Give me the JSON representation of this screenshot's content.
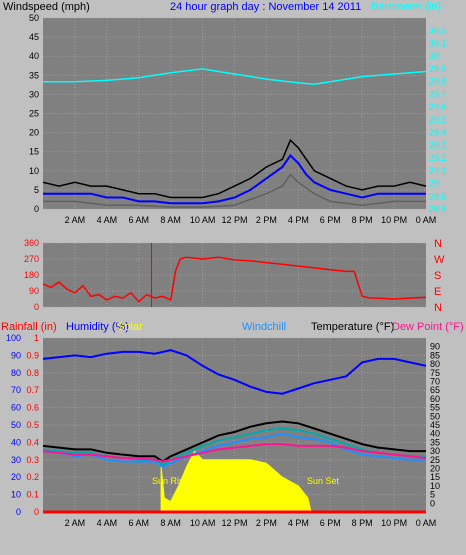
{
  "colors": {
    "page_bg": "#c0c0c0",
    "plot_bg": "#808080",
    "grid": "#a0a0a0",
    "windspeed": "#000000",
    "gust_avg": "#0000ff",
    "gust_min": "#606060",
    "barometer": "#00ffff",
    "wind_dir": "#ff0000",
    "humidity": "#0000ff",
    "rainfall": "#ff0000",
    "solar": "#ffff00",
    "windchill": "#1e90ff",
    "temperature": "#000000",
    "dew_point": "#ff1493",
    "temp2": "#00aaaa"
  },
  "chart_data": [
    {
      "type": "line",
      "title": "24 hour graph day : November 14 2011",
      "ylabel_left": "Windspeed (mph)",
      "ylabel_right": "Barometer (in)",
      "ylim_left": [
        0,
        50
      ],
      "yticks_left": [
        "0",
        "5",
        "10",
        "15",
        "20",
        "25",
        "30",
        "35",
        "40",
        "45",
        "50"
      ],
      "ylim_right": [
        28.8,
        30.3
      ],
      "yticks_right": [
        "28.8",
        "28.9",
        "29",
        "29.1",
        "29.2",
        "29.3",
        "29.4",
        "29.5",
        "29.6",
        "29.7",
        "29.8",
        "29.9",
        "30",
        "30.1",
        "30.2"
      ],
      "x_ticks": [
        "2 AM",
        "4 AM",
        "6 AM",
        "8 AM",
        "10 AM",
        "12 PM",
        "2 PM",
        "4 PM",
        "6 PM",
        "8 PM",
        "10 PM",
        "0 AM"
      ],
      "series": [
        {
          "key": "windspeed",
          "x": [
            0,
            1,
            2,
            3,
            4,
            5,
            6,
            7,
            8,
            9,
            10,
            11,
            12,
            13,
            14,
            15,
            15.5,
            16,
            16.5,
            17,
            18,
            19,
            20,
            21,
            22,
            23,
            24
          ],
          "values": [
            7,
            6,
            7,
            6,
            6,
            5,
            4,
            4,
            3,
            3,
            3,
            4,
            6,
            8,
            11,
            13,
            18,
            16,
            13,
            10,
            8,
            6,
            5,
            6,
            6,
            7,
            6
          ]
        },
        {
          "key": "gust_avg",
          "x": [
            0,
            1,
            2,
            3,
            4,
            5,
            6,
            7,
            8,
            9,
            10,
            11,
            12,
            13,
            14,
            15,
            15.5,
            16,
            16.5,
            17,
            18,
            19,
            20,
            21,
            22,
            23,
            24
          ],
          "values": [
            4,
            4,
            4,
            4,
            3,
            3,
            2,
            2,
            1.5,
            1.5,
            1.5,
            2,
            3,
            5,
            8,
            11,
            14,
            12,
            9,
            7,
            5,
            4,
            3,
            4,
            4,
            4,
            4
          ]
        },
        {
          "key": "gust_min",
          "x": [
            0,
            2,
            4,
            6,
            8,
            10,
            12,
            14,
            15,
            15.5,
            16,
            17,
            18,
            20,
            22,
            24
          ],
          "values": [
            2,
            2,
            1,
            1,
            0.5,
            0.5,
            1,
            4,
            6,
            9,
            7,
            4,
            2,
            1,
            2,
            2
          ]
        },
        {
          "key": "barometer",
          "x": [
            0,
            2,
            4,
            6,
            8,
            10,
            11,
            12,
            14,
            16,
            17,
            18,
            20,
            22,
            24
          ],
          "values": [
            29.8,
            29.8,
            29.81,
            29.83,
            29.87,
            29.9,
            29.88,
            29.86,
            29.82,
            29.79,
            29.78,
            29.8,
            29.84,
            29.86,
            29.88
          ]
        }
      ]
    },
    {
      "type": "scatter",
      "ylabel_right": [
        "N",
        "W",
        "S",
        "E",
        "N"
      ],
      "ylim": [
        0,
        360
      ],
      "yticks": [
        "0",
        "90",
        "180",
        "270",
        "360"
      ],
      "x_ticks": [],
      "series": [
        {
          "key": "wind_dir",
          "x": [
            0,
            0.5,
            1,
            1.5,
            2,
            2.5,
            3,
            3.5,
            4,
            4.5,
            5,
            5.5,
            6,
            6.5,
            7,
            7.5,
            8,
            8.3,
            8.6,
            9,
            10,
            11,
            12,
            13,
            14,
            15,
            16,
            17,
            18,
            19,
            19.5,
            20,
            20.5,
            21,
            22,
            23,
            24
          ],
          "values": [
            130,
            110,
            140,
            100,
            80,
            120,
            60,
            70,
            40,
            60,
            50,
            80,
            30,
            70,
            50,
            60,
            40,
            200,
            270,
            280,
            270,
            280,
            265,
            260,
            250,
            240,
            230,
            220,
            210,
            200,
            200,
            60,
            50,
            50,
            45,
            50,
            55
          ]
        }
      ]
    },
    {
      "type": "line",
      "ylabel_left": "Rainfall (in)",
      "ylabel_left2": "Humidity (%)",
      "label_solar": "Solar",
      "label_windchill": "Windchill",
      "ylabel_right": "Temperature (°F)",
      "ylabel_right2": "Dew Point (°F)",
      "ylim_rain": [
        0,
        1
      ],
      "yticks_rain": [
        "0",
        "0.1",
        "0.2",
        "0.3",
        "0.4",
        "0.5",
        "0.6",
        "0.7",
        "0.8",
        "0.9",
        "1"
      ],
      "yticks_humidity": [
        "0",
        "10",
        "20",
        "30",
        "40",
        "50",
        "60",
        "70",
        "80",
        "90",
        "100"
      ],
      "ylim_temp": [
        -5,
        95
      ],
      "yticks_temp": [
        "0",
        "5",
        "10",
        "15",
        "20",
        "25",
        "30",
        "35",
        "40",
        "45",
        "50",
        "55",
        "60",
        "65",
        "70",
        "75",
        "80",
        "85",
        "90"
      ],
      "annotations": [
        "Sun Rise",
        "Sun Set"
      ],
      "x_ticks": [
        "2 AM",
        "4 AM",
        "6 AM",
        "8 AM",
        "10 AM",
        "12 PM",
        "2 PM",
        "4 PM",
        "6 PM",
        "8 PM",
        "10 PM",
        "0 AM"
      ],
      "series": [
        {
          "key": "humidity",
          "x": [
            0,
            1,
            2,
            3,
            4,
            5,
            6,
            7,
            8,
            9,
            10,
            11,
            12,
            13,
            14,
            15,
            16,
            17,
            18,
            19,
            20,
            21,
            22,
            23,
            24
          ],
          "values": [
            88,
            89,
            90,
            89,
            91,
            92,
            92,
            91,
            93,
            90,
            84,
            79,
            76,
            72,
            69,
            68,
            71,
            74,
            76,
            78,
            86,
            88,
            88,
            86,
            84
          ]
        },
        {
          "key": "temperature",
          "x": [
            0,
            1,
            2,
            3,
            4,
            5,
            6,
            7,
            7.5,
            8,
            9,
            10,
            11,
            12,
            13,
            14,
            15,
            16,
            17,
            18,
            19,
            20,
            21,
            22,
            23,
            24
          ],
          "values": [
            33,
            32,
            31,
            31,
            29,
            28,
            27,
            27,
            24,
            27,
            31,
            35,
            39,
            41,
            44,
            46,
            47,
            46,
            43,
            40,
            37,
            34,
            32,
            31,
            30,
            30
          ]
        },
        {
          "key": "temp2",
          "x": [
            0,
            1,
            2,
            3,
            4,
            5,
            6,
            7,
            7.5,
            8,
            9,
            10,
            11,
            12,
            13,
            14,
            15,
            16,
            17,
            18,
            19,
            20,
            21,
            22,
            23,
            24
          ],
          "values": [
            31,
            30,
            29,
            29,
            27,
            26,
            25,
            25,
            22,
            25,
            29,
            33,
            36,
            38,
            40,
            42,
            43,
            42,
            40,
            37,
            34,
            31,
            29,
            28,
            27,
            27
          ]
        },
        {
          "key": "windchill",
          "x": [
            0,
            1,
            2,
            3,
            4,
            5,
            6,
            7,
            7.5,
            8,
            9,
            10,
            11,
            12,
            13,
            14,
            15,
            16,
            17,
            18,
            19,
            20,
            21,
            22,
            23,
            24
          ],
          "values": [
            30,
            29,
            27,
            28,
            25,
            24,
            24,
            24,
            21,
            23,
            27,
            30,
            33,
            35,
            37,
            38,
            40,
            38,
            37,
            35,
            31,
            28,
            27,
            26,
            25,
            25
          ]
        },
        {
          "key": "dew_point",
          "x": [
            0,
            1,
            2,
            3,
            4,
            5,
            6,
            7,
            7.5,
            8,
            9,
            10,
            11,
            12,
            13,
            14,
            15,
            16,
            17,
            18,
            19,
            20,
            21,
            22,
            23,
            24
          ],
          "values": [
            30,
            29,
            28,
            28,
            27,
            26,
            26,
            25,
            24,
            25,
            27,
            29,
            31,
            32,
            33,
            34,
            34,
            33,
            33,
            33,
            32,
            30,
            29,
            28,
            27,
            26
          ]
        },
        {
          "key": "rainfall",
          "x": [
            0,
            24
          ],
          "values": [
            0,
            0
          ]
        },
        {
          "key": "solar",
          "x": [
            7.4,
            7.6,
            8,
            8.5,
            9,
            9.5,
            10,
            11,
            12,
            13,
            14,
            15,
            16,
            16.6,
            16.8
          ],
          "values": [
            0.26,
            0.08,
            0.06,
            0.15,
            0.26,
            0.35,
            0.3,
            0.3,
            0.3,
            0.3,
            0.28,
            0.2,
            0.15,
            0.08,
            0
          ]
        }
      ]
    }
  ]
}
